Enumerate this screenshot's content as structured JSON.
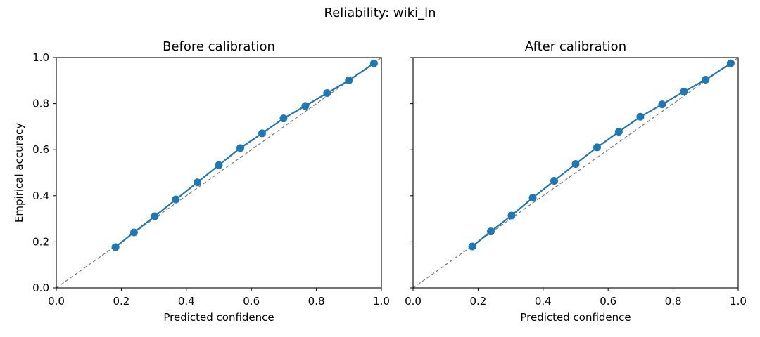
{
  "figure": {
    "title": "Reliability: wiki_ln"
  },
  "chart_data": [
    {
      "type": "line",
      "title": "Before calibration",
      "xlabel": "Predicted confidence",
      "ylabel": "Empirical accuracy",
      "xlim": [
        0,
        1
      ],
      "ylim": [
        0,
        1
      ],
      "xticks": [
        "0.0",
        "0.2",
        "0.4",
        "0.6",
        "0.8",
        "1.0"
      ],
      "yticks": [
        "0.0",
        "0.2",
        "0.4",
        "0.6",
        "0.8",
        "1.0"
      ],
      "grid": false,
      "reference_line": {
        "x": [
          0,
          1
        ],
        "y": [
          0,
          1
        ],
        "style": "dashed",
        "color": "#808080"
      },
      "series": [
        {
          "color": "#1f77b4",
          "marker": "circle",
          "x": [
            0.182,
            0.239,
            0.303,
            0.368,
            0.434,
            0.5,
            0.566,
            0.633,
            0.699,
            0.766,
            0.833,
            0.9,
            0.977
          ],
          "y": [
            0.177,
            0.241,
            0.311,
            0.384,
            0.458,
            0.533,
            0.607,
            0.671,
            0.736,
            0.79,
            0.846,
            0.901,
            0.975
          ]
        }
      ]
    },
    {
      "type": "line",
      "title": "After calibration",
      "xlabel": "Predicted confidence",
      "ylabel": "",
      "xlim": [
        0,
        1
      ],
      "ylim": [
        0,
        1
      ],
      "xticks": [
        "0.0",
        "0.2",
        "0.4",
        "0.6",
        "0.8",
        "1.0"
      ],
      "yticks": [
        "",
        "",
        "",
        "",
        "",
        ""
      ],
      "grid": false,
      "reference_line": {
        "x": [
          0,
          1
        ],
        "y": [
          0,
          1
        ],
        "style": "dashed",
        "color": "#808080"
      },
      "series": [
        {
          "color": "#1f77b4",
          "marker": "circle",
          "x": [
            0.182,
            0.239,
            0.303,
            0.368,
            0.434,
            0.5,
            0.566,
            0.633,
            0.699,
            0.766,
            0.833,
            0.9,
            0.977
          ],
          "y": [
            0.18,
            0.245,
            0.314,
            0.391,
            0.465,
            0.538,
            0.61,
            0.678,
            0.743,
            0.797,
            0.852,
            0.904,
            0.975
          ]
        }
      ]
    }
  ]
}
